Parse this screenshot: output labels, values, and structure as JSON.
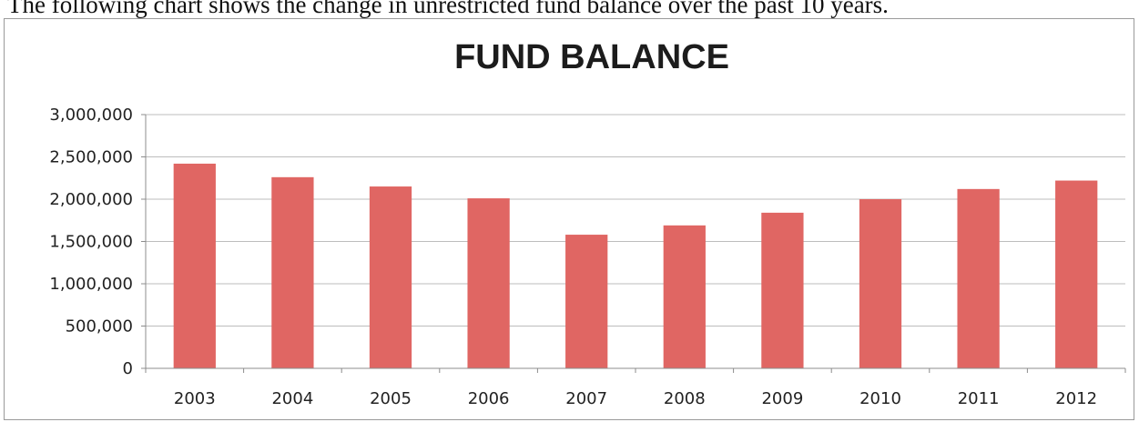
{
  "page": {
    "intro_text": "The following chart shows the change in unrestricted fund balance over the past 10 years."
  },
  "colors": {
    "bar": "#E06663",
    "gridline": "#bdbdbd",
    "axis": "#8c8c8c"
  },
  "chart_data": {
    "type": "bar",
    "title": "FUND BALANCE",
    "xlabel": "",
    "ylabel": "",
    "categories": [
      "2003",
      "2004",
      "2005",
      "2006",
      "2007",
      "2008",
      "2009",
      "2010",
      "2011",
      "2012"
    ],
    "values": [
      2420000,
      2260000,
      2150000,
      2010000,
      1580000,
      1690000,
      1840000,
      2000000,
      2120000,
      2220000
    ],
    "ylim": [
      0,
      3000000
    ],
    "yticks": [
      0,
      500000,
      1000000,
      1500000,
      2000000,
      2500000,
      3000000
    ],
    "ytick_labels": [
      "0",
      "500,000",
      "1,000,000",
      "1,500,000",
      "2,000,000",
      "2,500,000",
      "3,000,000"
    ],
    "grid": true,
    "legend": "none"
  }
}
